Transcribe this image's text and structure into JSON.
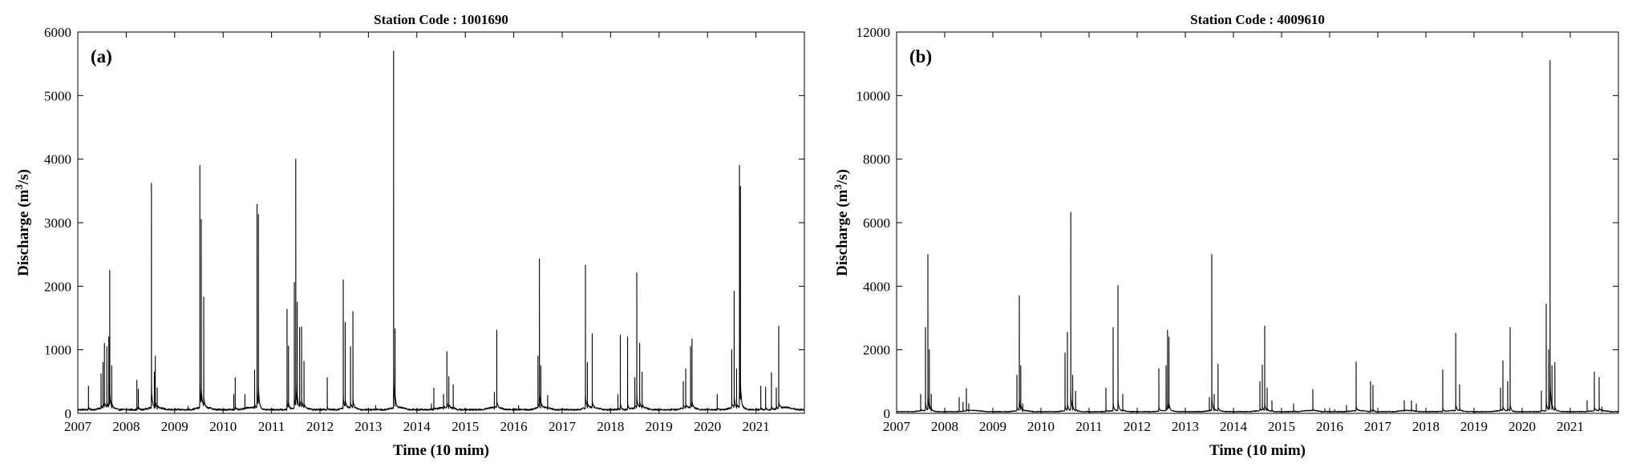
{
  "chart_data": [
    {
      "type": "line",
      "title": "Station Code : 1001690",
      "panel_label": "(a)",
      "xlabel": "Time (10 mim)",
      "ylabel_main": "Discharge (m",
      "ylabel_sup": "3",
      "ylabel_tail": "/s)",
      "xlim": [
        2007.0,
        2022.0
      ],
      "ylim": [
        0,
        6000
      ],
      "x_ticks": [
        2007,
        2008,
        2009,
        2010,
        2011,
        2012,
        2013,
        2014,
        2015,
        2016,
        2017,
        2018,
        2019,
        2020,
        2021
      ],
      "x_tick_labels": [
        "2007",
        "2008",
        "2009",
        "2010",
        "2011",
        "2012",
        "2013",
        "2014",
        "2015",
        "2016",
        "2017",
        "2018",
        "2019",
        "2020",
        "2021"
      ],
      "y_ticks": [
        0,
        1000,
        2000,
        3000,
        4000,
        5000,
        6000
      ],
      "y_tick_labels": [
        "0",
        "1000",
        "2000",
        "3000",
        "4000",
        "5000",
        "6000"
      ],
      "line_color": "#000000",
      "grid": false,
      "peaks": [
        [
          2007.22,
          430
        ],
        [
          2007.48,
          620
        ],
        [
          2007.52,
          800
        ],
        [
          2007.55,
          1100
        ],
        [
          2007.6,
          1050
        ],
        [
          2007.64,
          1200
        ],
        [
          2007.66,
          2250
        ],
        [
          2007.7,
          750
        ],
        [
          2008.22,
          520
        ],
        [
          2008.25,
          380
        ],
        [
          2008.52,
          3620
        ],
        [
          2008.58,
          650
        ],
        [
          2008.6,
          900
        ],
        [
          2008.64,
          400
        ],
        [
          2009.28,
          110
        ],
        [
          2009.52,
          3900
        ],
        [
          2009.55,
          3050
        ],
        [
          2009.6,
          1830
        ],
        [
          2010.22,
          300
        ],
        [
          2010.25,
          560
        ],
        [
          2010.45,
          300
        ],
        [
          2010.65,
          680
        ],
        [
          2010.7,
          3290
        ],
        [
          2010.73,
          3130
        ],
        [
          2011.32,
          1640
        ],
        [
          2011.35,
          1060
        ],
        [
          2011.47,
          2060
        ],
        [
          2011.5,
          4000
        ],
        [
          2011.53,
          1750
        ],
        [
          2011.58,
          1350
        ],
        [
          2011.62,
          1360
        ],
        [
          2011.67,
          820
        ],
        [
          2012.15,
          560
        ],
        [
          2012.48,
          2100
        ],
        [
          2012.52,
          1430
        ],
        [
          2012.63,
          1050
        ],
        [
          2012.68,
          1600
        ],
        [
          2013.15,
          120
        ],
        [
          2013.52,
          5700
        ],
        [
          2013.55,
          1330
        ],
        [
          2014.3,
          150
        ],
        [
          2014.35,
          400
        ],
        [
          2014.55,
          300
        ],
        [
          2014.62,
          970
        ],
        [
          2014.66,
          580
        ],
        [
          2014.75,
          450
        ],
        [
          2015.6,
          330
        ],
        [
          2015.65,
          1310
        ],
        [
          2016.1,
          120
        ],
        [
          2016.5,
          900
        ],
        [
          2016.53,
          2430
        ],
        [
          2016.56,
          750
        ],
        [
          2016.7,
          280
        ],
        [
          2017.48,
          2330
        ],
        [
          2017.52,
          800
        ],
        [
          2017.62,
          1250
        ],
        [
          2018.15,
          300
        ],
        [
          2018.2,
          1230
        ],
        [
          2018.35,
          1200
        ],
        [
          2018.5,
          560
        ],
        [
          2018.54,
          2210
        ],
        [
          2018.6,
          1100
        ],
        [
          2018.65,
          650
        ],
        [
          2019.5,
          500
        ],
        [
          2019.55,
          700
        ],
        [
          2019.65,
          1050
        ],
        [
          2019.68,
          1170
        ],
        [
          2020.2,
          300
        ],
        [
          2020.5,
          1000
        ],
        [
          2020.55,
          1920
        ],
        [
          2020.6,
          700
        ],
        [
          2020.66,
          3900
        ],
        [
          2020.68,
          3570
        ],
        [
          2021.1,
          430
        ],
        [
          2021.2,
          410
        ],
        [
          2021.32,
          640
        ],
        [
          2021.42,
          400
        ],
        [
          2021.47,
          1370
        ]
      ],
      "baseflow": 45
    },
    {
      "type": "line",
      "title": "Station Code : 4009610",
      "panel_label": "(b)",
      "xlabel": "Time (10 mim)",
      "ylabel_main": "Discharge (m",
      "ylabel_sup": "3",
      "ylabel_tail": "/s)",
      "xlim": [
        2007.0,
        2022.0
      ],
      "ylim": [
        0,
        12000
      ],
      "x_ticks": [
        2007,
        2008,
        2009,
        2010,
        2011,
        2012,
        2013,
        2014,
        2015,
        2016,
        2017,
        2018,
        2019,
        2020,
        2021
      ],
      "x_tick_labels": [
        "2007",
        "2008",
        "2009",
        "2010",
        "2011",
        "2012",
        "2013",
        "2014",
        "2015",
        "2016",
        "2017",
        "2018",
        "2019",
        "2020",
        "2021"
      ],
      "y_ticks": [
        0,
        2000,
        4000,
        6000,
        8000,
        10000,
        12000
      ],
      "y_tick_labels": [
        "0",
        "2000",
        "4000",
        "6000",
        "8000",
        "10000",
        "12000"
      ],
      "line_color": "#000000",
      "grid": false,
      "peaks": [
        [
          2007.5,
          600
        ],
        [
          2007.6,
          2700
        ],
        [
          2007.65,
          5000
        ],
        [
          2007.68,
          2000
        ],
        [
          2007.72,
          600
        ],
        [
          2008.3,
          500
        ],
        [
          2008.38,
          350
        ],
        [
          2008.45,
          780
        ],
        [
          2008.5,
          300
        ],
        [
          2009.5,
          1200
        ],
        [
          2009.55,
          3700
        ],
        [
          2009.58,
          1500
        ],
        [
          2009.62,
          300
        ],
        [
          2010.5,
          1900
        ],
        [
          2010.55,
          2550
        ],
        [
          2010.62,
          6330
        ],
        [
          2010.66,
          1200
        ],
        [
          2010.72,
          700
        ],
        [
          2011.35,
          800
        ],
        [
          2011.5,
          2700
        ],
        [
          2011.6,
          4020
        ],
        [
          2011.7,
          600
        ],
        [
          2012.45,
          1400
        ],
        [
          2012.6,
          1500
        ],
        [
          2012.63,
          2620
        ],
        [
          2012.66,
          2400
        ],
        [
          2013.5,
          500
        ],
        [
          2013.55,
          5000
        ],
        [
          2013.6,
          600
        ],
        [
          2013.68,
          1550
        ],
        [
          2014.55,
          1000
        ],
        [
          2014.6,
          1520
        ],
        [
          2014.65,
          2750
        ],
        [
          2014.7,
          800
        ],
        [
          2014.8,
          400
        ],
        [
          2015.25,
          300
        ],
        [
          2015.65,
          750
        ],
        [
          2015.9,
          150
        ],
        [
          2016.1,
          120
        ],
        [
          2016.35,
          250
        ],
        [
          2016.55,
          1620
        ],
        [
          2016.85,
          1000
        ],
        [
          2016.9,
          880
        ],
        [
          2017.55,
          400
        ],
        [
          2017.7,
          400
        ],
        [
          2017.8,
          300
        ],
        [
          2018.35,
          1370
        ],
        [
          2018.62,
          2520
        ],
        [
          2018.7,
          900
        ],
        [
          2019.55,
          800
        ],
        [
          2019.6,
          1650
        ],
        [
          2019.7,
          1000
        ],
        [
          2019.75,
          2700
        ],
        [
          2020.4,
          700
        ],
        [
          2020.5,
          3440
        ],
        [
          2020.55,
          2000
        ],
        [
          2020.58,
          11100
        ],
        [
          2020.62,
          1500
        ],
        [
          2020.68,
          1600
        ],
        [
          2021.35,
          400
        ],
        [
          2021.5,
          1300
        ],
        [
          2021.6,
          1130
        ],
        [
          2021.66,
          200
        ]
      ],
      "baseflow": 40
    }
  ]
}
